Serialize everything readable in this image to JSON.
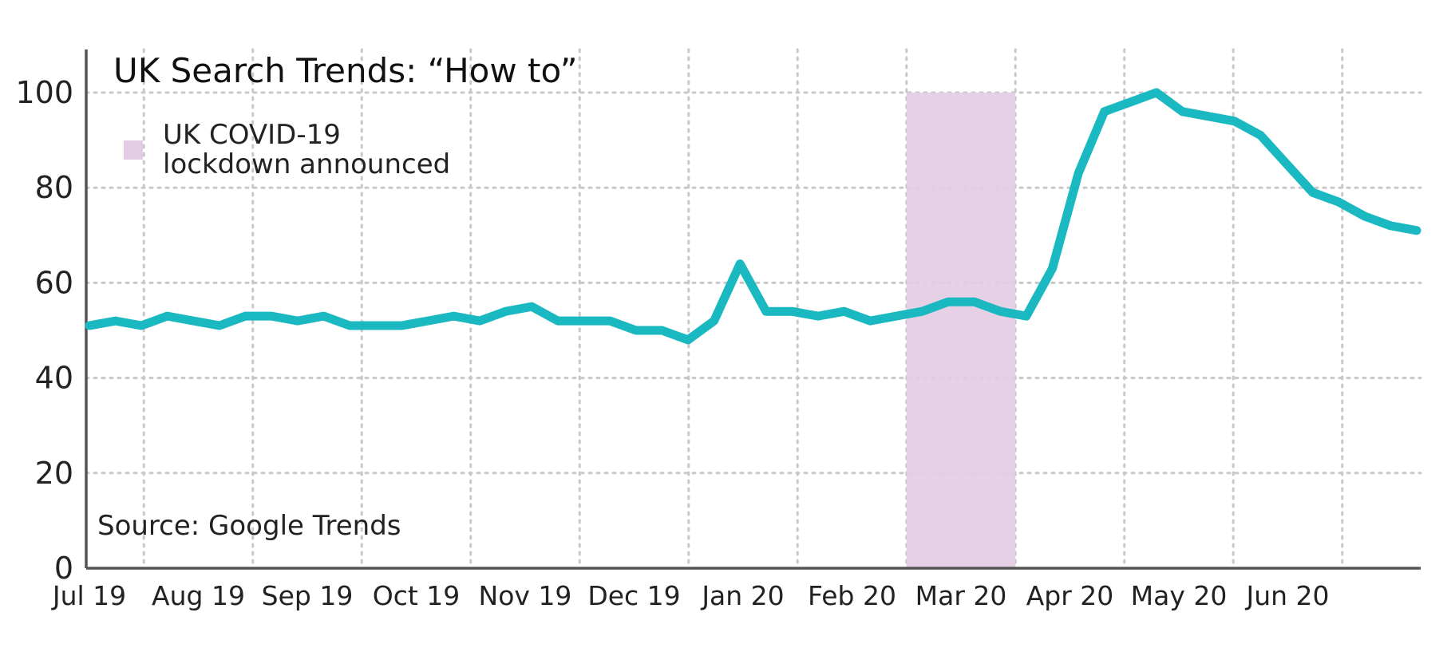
{
  "chart_data": {
    "type": "line",
    "title": "UK Search Trends: “How to”",
    "xlabel": "",
    "ylabel": "",
    "ylim": [
      0,
      100
    ],
    "yticks": [
      0,
      20,
      40,
      60,
      80,
      100
    ],
    "grid": true,
    "month_labels": [
      "Jul 19",
      "Aug 19",
      "Sep 19",
      "Oct 19",
      "Nov 19",
      "Dec 19",
      "Jan 20",
      "Feb 20",
      "Mar 20",
      "Apr 20",
      "May 20",
      "Jun 20"
    ],
    "series": [
      {
        "color": "#1ab9c1",
        "values": [
          51,
          52,
          51,
          53,
          52,
          51,
          53,
          53,
          52,
          53,
          51,
          51,
          51,
          52,
          53,
          52,
          54,
          55,
          52,
          52,
          52,
          50,
          50,
          48,
          52,
          64,
          54,
          54,
          53,
          54,
          52,
          53,
          54,
          56,
          56,
          54,
          53,
          63,
          83,
          96,
          98,
          100,
          96,
          95,
          94,
          91,
          85,
          79,
          77,
          74,
          72,
          71
        ]
      }
    ],
    "highlight": {
      "label": "UK COVID-19 lockdown announced",
      "label_lines": [
        "UK COVID-19",
        "lockdown announced"
      ],
      "period": "Mar 20",
      "color": "#e3cce3"
    },
    "source": "Source: Google Trends",
    "legend_position": "top-left"
  }
}
